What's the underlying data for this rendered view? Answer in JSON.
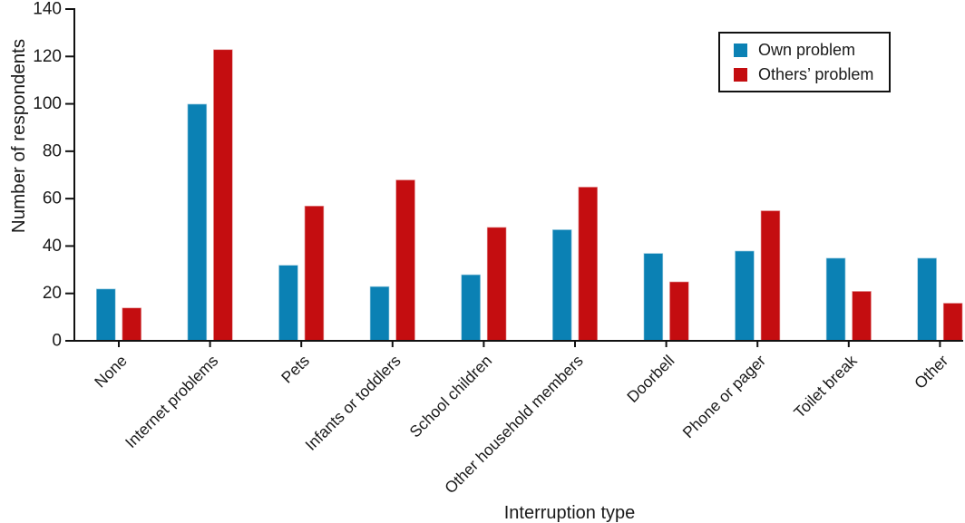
{
  "chart_data": {
    "type": "bar",
    "grouped": true,
    "title": "",
    "xlabel": "Interruption type",
    "ylabel": "Number of respondents",
    "categories": [
      "None",
      "Internet problems",
      "Pets",
      "Infants or toddlers",
      "School children",
      "Other household members",
      "Doorbell",
      "Phone or pager",
      "Toilet break",
      "Other"
    ],
    "series": [
      {
        "name": "Own problem",
        "color": "#0b81b4",
        "values": [
          22,
          100,
          32,
          23,
          28,
          47,
          37,
          38,
          35,
          35
        ]
      },
      {
        "name": "Others’ problem",
        "color": "#c40d10",
        "values": [
          14,
          123,
          57,
          68,
          48,
          65,
          25,
          55,
          21,
          16
        ]
      }
    ],
    "ylim": [
      0,
      140
    ],
    "ytick_step": 20,
    "grid": false,
    "legend_position": "upper right",
    "axis_color": "#111111",
    "bar_edge_color": "rgba(255,255,255,0.6)"
  }
}
